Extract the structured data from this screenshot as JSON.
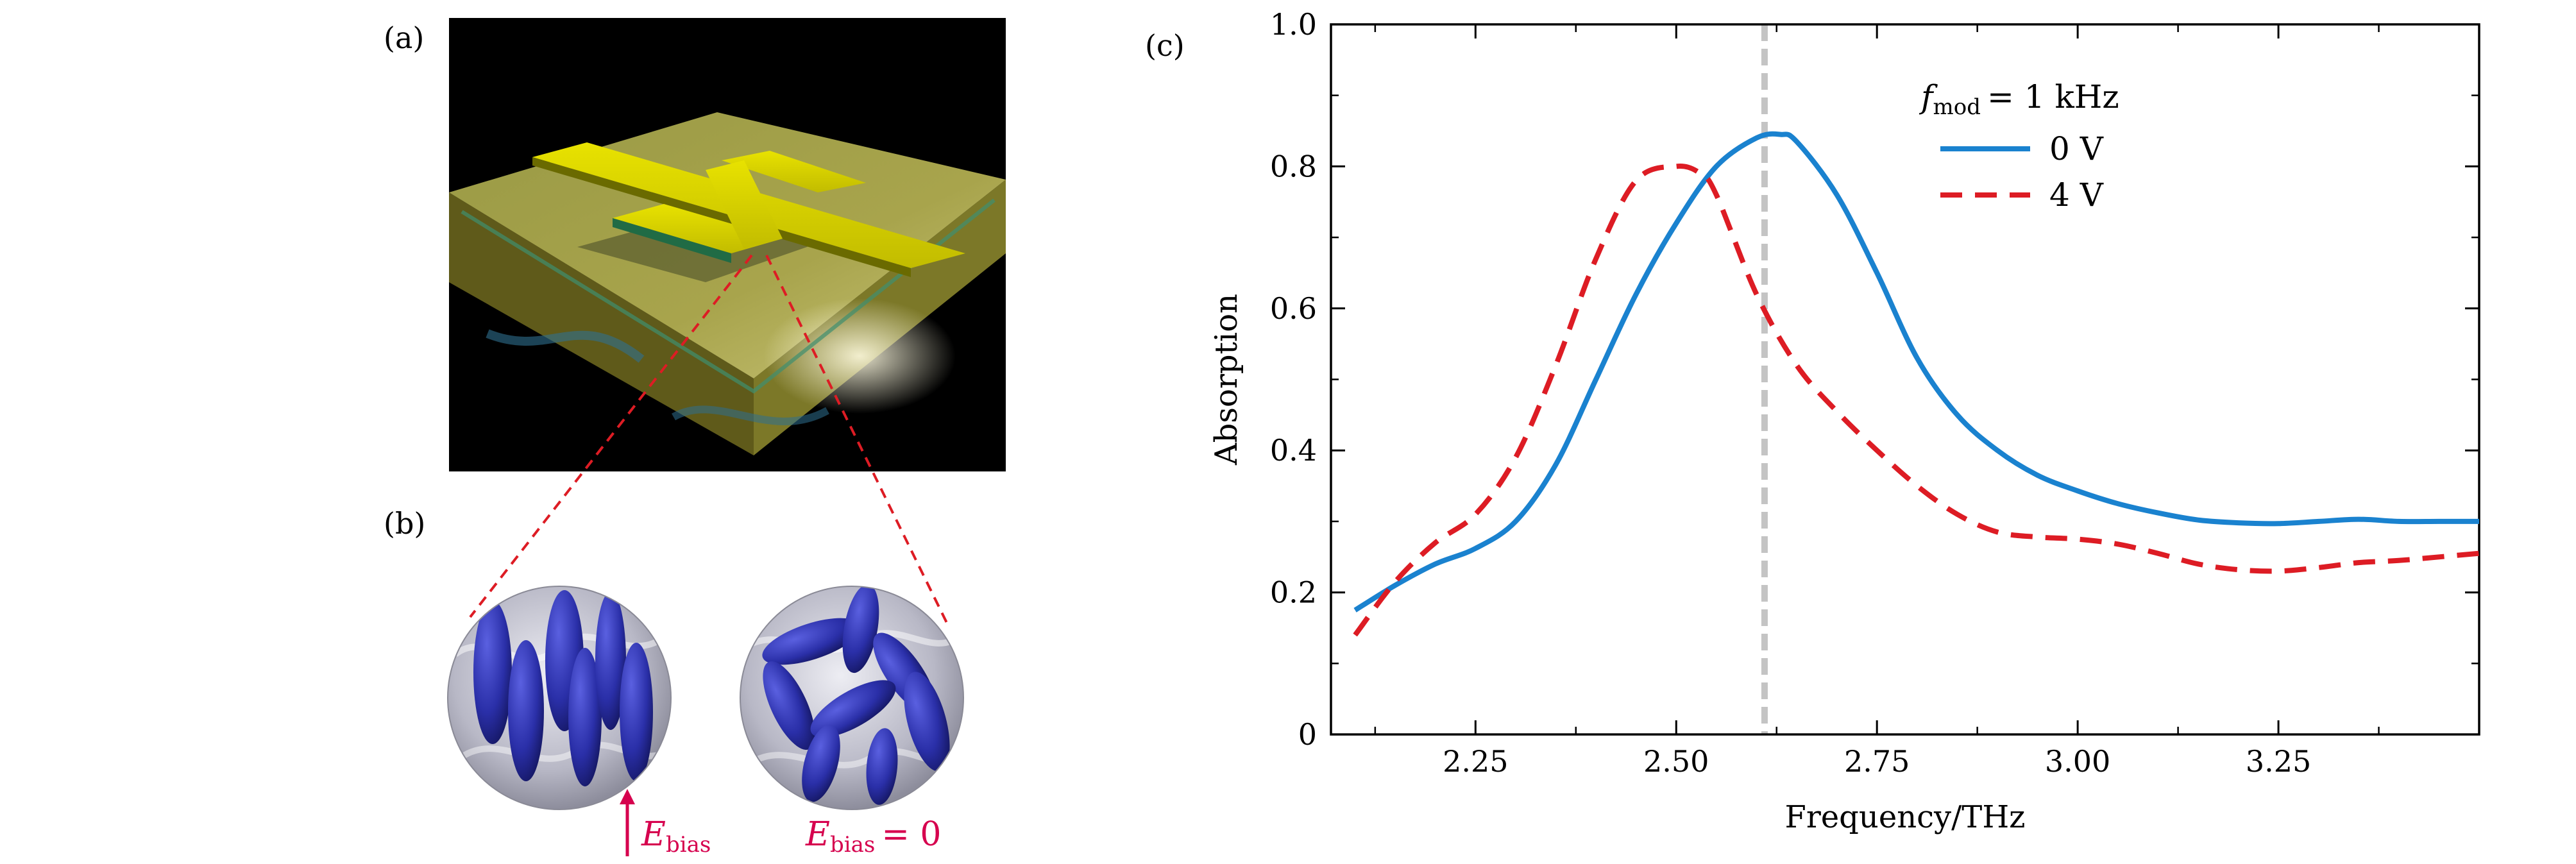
{
  "panels": {
    "a": {
      "label": "(a)"
    },
    "b": {
      "label": "(b)",
      "biased": {
        "symbol": "E",
        "subscript": "bias"
      },
      "unbiased": {
        "symbol": "E",
        "subscript": "bias",
        "relation": "= 0"
      }
    },
    "c": {
      "label": "(c)"
    }
  },
  "colors": {
    "series_0V": "#1a82cf",
    "series_4V": "#dd1c24",
    "annotation": "#d6004e",
    "molecule": "#2a2fa8",
    "device_gold": "#c8c200"
  },
  "chart_data": {
    "type": "line",
    "title": "",
    "xlabel": "Frequency/THz",
    "ylabel": "Absorption",
    "xlim": [
      2.07,
      3.5
    ],
    "ylim": [
      0,
      1.0
    ],
    "x_ticks": [
      2.25,
      2.5,
      2.75,
      3.0,
      3.25
    ],
    "x_tick_labels": [
      "2.25",
      "2.50",
      "2.75",
      "3.00",
      "3.25"
    ],
    "y_ticks": [
      0,
      0.2,
      0.4,
      0.6,
      0.8,
      1.0
    ],
    "y_tick_labels": [
      "0",
      "0.2",
      "0.4",
      "0.6",
      "0.8",
      "1.0"
    ],
    "grid": false,
    "legend_position": "top-right",
    "legend_title": {
      "symbol": "f",
      "subscript": "mod",
      "value": "= 1 kHz"
    },
    "reference_line_x": 2.61,
    "series": [
      {
        "name": "0 V",
        "style": "solid",
        "x": [
          2.1,
          2.15,
          2.2,
          2.25,
          2.3,
          2.35,
          2.4,
          2.45,
          2.5,
          2.55,
          2.6,
          2.63,
          2.65,
          2.7,
          2.75,
          2.8,
          2.85,
          2.9,
          2.95,
          3.0,
          3.05,
          3.1,
          3.15,
          3.2,
          3.25,
          3.3,
          3.35,
          3.4,
          3.45,
          3.5
        ],
        "y": [
          0.175,
          0.21,
          0.24,
          0.262,
          0.3,
          0.38,
          0.5,
          0.62,
          0.72,
          0.8,
          0.84,
          0.845,
          0.835,
          0.76,
          0.65,
          0.53,
          0.45,
          0.4,
          0.365,
          0.343,
          0.325,
          0.312,
          0.302,
          0.298,
          0.297,
          0.3,
          0.303,
          0.3,
          0.3,
          0.3
        ]
      },
      {
        "name": "4 V",
        "style": "dashed",
        "x": [
          2.1,
          2.15,
          2.2,
          2.25,
          2.3,
          2.35,
          2.4,
          2.45,
          2.5,
          2.53,
          2.55,
          2.6,
          2.65,
          2.7,
          2.75,
          2.8,
          2.85,
          2.9,
          2.95,
          3.0,
          3.05,
          3.1,
          3.15,
          3.2,
          3.25,
          3.3,
          3.35,
          3.4,
          3.45,
          3.5
        ],
        "y": [
          0.14,
          0.215,
          0.27,
          0.31,
          0.39,
          0.52,
          0.67,
          0.78,
          0.8,
          0.79,
          0.76,
          0.62,
          0.52,
          0.455,
          0.4,
          0.35,
          0.31,
          0.285,
          0.278,
          0.275,
          0.268,
          0.255,
          0.24,
          0.232,
          0.23,
          0.235,
          0.242,
          0.245,
          0.25,
          0.255
        ]
      }
    ]
  }
}
